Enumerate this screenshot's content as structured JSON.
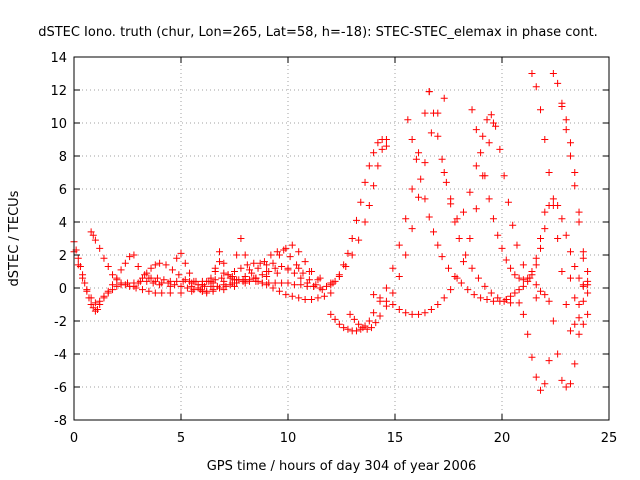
{
  "chart_data": {
    "type": "scatter",
    "title": "dSTEC Iono. truth (chur, Lon=265, Lat=58, h=-18): STEC-STEC_elemax in phase cont.",
    "xlabel": "GPS time / hours of day 304 of year 2006",
    "ylabel": "dSTEC  / TECUs",
    "xlim": [
      0,
      25
    ],
    "ylim": [
      -8,
      14
    ],
    "xticks": [
      0,
      5,
      10,
      15,
      20,
      25
    ],
    "yticks": [
      -8,
      -6,
      -4,
      -2,
      0,
      2,
      4,
      6,
      8,
      10,
      12,
      14
    ],
    "grid": true,
    "legend": "none",
    "marker": "+",
    "color": "#ff0000",
    "series": [
      {
        "x": [
          0.0,
          0.1,
          0.2,
          0.3,
          0.4,
          0.5,
          0.6,
          0.7,
          0.8,
          0.9,
          1.0,
          1.1,
          1.2,
          1.4,
          1.6,
          1.8,
          2.0,
          2.2,
          2.5,
          2.8,
          3.1,
          3.4,
          3.7,
          4.0,
          4.5,
          5.0,
          5.5,
          6.0,
          6.5,
          7.0,
          7.5,
          8.0,
          8.5,
          9.0,
          9.5,
          10.0,
          10.5,
          11.0,
          11.5,
          12.0
        ],
        "y": [
          2.8,
          2.3,
          1.8,
          1.3,
          0.8,
          0.3,
          -0.2,
          -0.6,
          -1.0,
          -1.2,
          -1.4,
          -1.3,
          -1.0,
          -0.6,
          -0.3,
          -0.1,
          0.1,
          0.2,
          0.3,
          0.3,
          0.4,
          0.4,
          0.3,
          0.2,
          0.1,
          0.1,
          0.1,
          0.2,
          0.3,
          0.4,
          0.5,
          0.5,
          0.6,
          0.7,
          0.9,
          1.1,
          1.2,
          1.0,
          0.6,
          0.3
        ]
      },
      {
        "x": [
          0.8,
          0.9,
          1.0,
          1.2,
          1.4,
          1.6,
          1.8,
          2.0,
          2.2,
          2.4,
          2.6,
          2.9,
          3.2,
          3.5,
          3.8,
          4.1,
          4.5,
          5.0,
          5.5,
          6.0,
          6.5,
          7.0,
          7.5,
          8.0,
          8.5,
          9.0,
          9.3,
          9.6,
          9.9,
          10.2,
          10.5,
          10.8,
          11.1,
          11.4
        ],
        "y": [
          3.4,
          3.2,
          2.9,
          2.4,
          1.8,
          1.3,
          0.8,
          0.5,
          0.3,
          0.2,
          0.1,
          0.0,
          -0.1,
          -0.2,
          -0.3,
          -0.3,
          -0.3,
          -0.3,
          -0.2,
          -0.2,
          -0.2,
          -0.1,
          0.1,
          0.3,
          0.6,
          1.0,
          1.5,
          2.0,
          2.4,
          2.6,
          2.2,
          1.6,
          1.0,
          0.5
        ]
      },
      {
        "x": [
          0.0,
          0.2,
          0.4,
          0.6,
          0.8,
          1.0,
          1.2,
          1.4,
          1.6,
          1.8,
          2.0,
          2.2,
          2.4,
          2.6,
          2.8,
          3.0,
          3.3,
          3.6,
          3.9,
          4.2,
          4.5,
          4.8,
          5.1,
          5.4,
          5.7,
          6.0,
          6.3,
          6.6,
          6.9,
          7.2,
          7.5,
          7.8,
          8.1,
          8.4,
          8.7,
          9.0
        ],
        "y": [
          2.2,
          1.4,
          0.6,
          -0.1,
          -0.6,
          -0.9,
          -0.8,
          -0.5,
          -0.2,
          0.2,
          0.6,
          1.1,
          1.5,
          1.9,
          2.0,
          1.3,
          0.8,
          0.6,
          0.6,
          0.5,
          0.4,
          0.4,
          0.4,
          0.4,
          0.4,
          0.4,
          0.4,
          0.5,
          0.6,
          0.8,
          1.0,
          1.2,
          1.4,
          1.5,
          1.5,
          1.4
        ]
      },
      {
        "x": [
          2.8,
          3.0,
          3.2,
          3.4,
          3.6,
          3.8,
          4.0,
          4.3,
          4.6,
          4.9,
          5.2,
          5.5,
          5.8,
          6.1,
          6.4,
          6.7,
          7.0,
          7.3,
          7.6,
          7.9,
          8.2,
          8.5,
          8.8,
          9.1,
          9.4,
          9.7,
          10.0,
          10.3,
          10.6,
          10.9,
          11.2
        ],
        "y": [
          0.1,
          0.3,
          0.6,
          0.9,
          1.2,
          1.4,
          1.5,
          1.4,
          1.1,
          0.8,
          0.5,
          0.3,
          0.2,
          0.1,
          0.1,
          0.1,
          0.2,
          0.2,
          0.3,
          0.4,
          0.5,
          0.6,
          0.8,
          1.0,
          1.2,
          1.3,
          1.2,
          0.9,
          0.6,
          0.3,
          0.1
        ]
      },
      {
        "x": [
          3.5,
          3.8,
          4.1,
          4.4,
          4.7,
          5.0,
          5.3,
          5.6,
          5.9,
          6.2,
          6.5,
          6.8,
          7.1,
          7.4,
          7.7,
          8.0,
          8.3,
          8.6,
          8.9,
          9.2,
          9.5,
          9.8,
          10.1,
          10.4,
          10.7,
          11.0,
          11.3,
          11.6
        ],
        "y": [
          0.6,
          0.4,
          0.3,
          0.3,
          0.2,
          0.1,
          0.0,
          -0.1,
          -0.1,
          -0.2,
          -0.1,
          0.0,
          0.1,
          0.3,
          0.5,
          0.7,
          0.9,
          1.2,
          1.6,
          2.0,
          2.2,
          2.3,
          1.9,
          1.4,
          0.9,
          0.5,
          0.2,
          -0.1
        ]
      },
      {
        "x": [
          4.8,
          5.0,
          5.2,
          5.4,
          5.6,
          5.8,
          6.0,
          6.2,
          6.4,
          6.6,
          6.8,
          7.0,
          7.2,
          7.4,
          7.6,
          7.8,
          8.0,
          8.2,
          8.4,
          8.6,
          8.8,
          9.0,
          9.3,
          9.6,
          9.9,
          10.2,
          10.5,
          10.8,
          11.1,
          11.4,
          11.7,
          12.0
        ],
        "y": [
          1.8,
          2.1,
          1.5,
          0.9,
          0.4,
          0.0,
          -0.2,
          -0.3,
          0.4,
          1.2,
          2.2,
          1.5,
          0.8,
          0.7,
          2.0,
          3.0,
          2.0,
          1.1,
          0.6,
          0.4,
          0.3,
          0.2,
          0.0,
          -0.2,
          -0.4,
          -0.5,
          -0.6,
          -0.7,
          -0.7,
          -0.6,
          -0.5,
          -0.3
        ]
      },
      {
        "x": [
          6.0,
          6.2,
          6.4,
          6.6,
          6.8,
          7.0,
          7.3,
          7.6,
          7.9,
          8.2,
          8.5,
          8.8,
          9.1,
          9.4,
          9.7,
          10.0,
          10.3,
          10.6,
          10.9,
          11.2,
          11.5,
          11.8,
          12.1,
          12.4,
          12.7,
          13.0,
          13.3,
          13.6,
          13.8,
          14.0,
          14.2,
          14.4,
          14.6
        ],
        "y": [
          0.2,
          0.4,
          0.6,
          1.0,
          1.6,
          0.9,
          0.6,
          0.5,
          0.5,
          0.4,
          0.4,
          0.3,
          0.3,
          0.3,
          0.3,
          0.3,
          0.2,
          0.2,
          0.1,
          0.1,
          0.0,
          0.1,
          0.3,
          0.7,
          1.3,
          2.0,
          2.9,
          4.0,
          5.0,
          6.2,
          7.4,
          8.4,
          9.0
        ]
      },
      {
        "x": [
          12.0,
          12.2,
          12.4,
          12.6,
          12.8,
          13.0,
          13.2,
          13.4,
          13.6,
          13.8,
          14.0,
          14.2,
          14.4,
          14.6
        ],
        "y": [
          0.2,
          0.4,
          0.8,
          1.4,
          2.1,
          3.0,
          4.1,
          5.2,
          6.4,
          7.4,
          8.2,
          8.8,
          9.0,
          8.6
        ]
      },
      {
        "x": [
          12.0,
          12.2,
          12.4,
          12.6,
          12.8,
          13.0,
          13.2,
          13.4,
          13.6,
          13.8,
          14.0,
          14.3,
          14.6,
          14.9,
          15.2,
          15.5,
          15.8,
          16.1,
          16.4,
          16.6
        ],
        "y": [
          -1.6,
          -1.9,
          -2.2,
          -2.4,
          -2.5,
          -2.6,
          -2.6,
          -2.5,
          -2.3,
          -2.0,
          -1.5,
          -0.8,
          0.0,
          1.2,
          2.6,
          4.2,
          6.0,
          8.2,
          10.6,
          11.9
        ]
      },
      {
        "x": [
          12.9,
          13.1,
          13.3,
          13.5,
          13.7,
          13.9,
          14.1,
          14.3,
          14.6,
          14.9,
          15.2,
          15.5,
          15.8,
          16.1,
          16.4,
          16.7,
          17.0,
          17.3
        ],
        "y": [
          -1.6,
          -1.9,
          -2.2,
          -2.4,
          -2.5,
          -2.4,
          -2.1,
          -1.7,
          -1.1,
          -0.3,
          0.7,
          2.0,
          3.6,
          5.5,
          7.6,
          9.4,
          10.6,
          11.5
        ]
      },
      {
        "x": [
          14.0,
          14.3,
          14.6,
          14.9,
          15.2,
          15.5,
          15.8,
          16.1,
          16.4,
          16.7,
          17.0,
          17.3,
          17.6,
          17.9,
          18.2,
          18.5,
          18.8,
          19.1,
          19.4,
          19.6
        ],
        "y": [
          -0.4,
          -0.6,
          -0.8,
          -1.0,
          -1.3,
          -1.5,
          -1.6,
          -1.6,
          -1.5,
          -1.3,
          -1.0,
          -0.6,
          -0.1,
          0.6,
          1.6,
          3.0,
          4.8,
          6.8,
          8.8,
          10.0
        ]
      },
      {
        "x": [
          15.6,
          15.8,
          16.0,
          16.2,
          16.4,
          16.6,
          16.8,
          17.0,
          17.2,
          17.5,
          17.8,
          18.1,
          18.4,
          18.7,
          19.0,
          19.3,
          19.6,
          19.9,
          20.2
        ],
        "y": [
          10.2,
          9.0,
          7.8,
          6.6,
          5.4,
          4.3,
          3.4,
          2.6,
          1.9,
          1.2,
          0.7,
          0.3,
          -0.1,
          -0.4,
          -0.6,
          -0.7,
          -0.8,
          -0.8,
          -0.7
        ]
      },
      {
        "x": [
          16.6,
          16.8,
          17.0,
          17.2,
          17.4,
          17.6,
          17.8,
          18.0,
          18.3,
          18.6,
          18.9,
          19.2,
          19.5,
          19.8,
          20.1,
          20.4
        ],
        "y": [
          11.9,
          10.6,
          9.2,
          7.8,
          6.4,
          5.1,
          4.0,
          3.0,
          2.0,
          1.2,
          0.6,
          0.1,
          -0.3,
          -0.6,
          -0.8,
          -0.9
        ]
      },
      {
        "x": [
          17.3,
          17.6,
          17.9,
          18.2,
          18.5,
          18.8,
          19.1,
          19.3,
          19.5,
          19.7,
          19.9,
          20.1,
          20.3,
          20.5,
          20.7,
          21.0,
          21.3,
          21.6
        ],
        "y": [
          7.0,
          5.4,
          4.2,
          4.6,
          5.8,
          7.4,
          9.2,
          10.2,
          10.5,
          9.8,
          8.4,
          6.8,
          5.2,
          3.8,
          2.6,
          1.4,
          0.6,
          0.2
        ]
      },
      {
        "x": [
          18.6,
          18.8,
          19.0,
          19.2,
          19.4,
          19.6,
          19.8,
          20.0,
          20.2,
          20.4,
          20.6,
          20.8,
          21.0,
          21.2,
          21.4,
          21.6,
          21.8,
          22.0
        ],
        "y": [
          10.8,
          9.6,
          8.2,
          6.8,
          5.4,
          4.2,
          3.2,
          2.4,
          1.7,
          1.2,
          0.8,
          0.6,
          0.5,
          0.6,
          1.0,
          1.8,
          3.0,
          4.6
        ]
      },
      {
        "x": [
          20.2,
          20.4,
          20.6,
          20.8,
          21.0,
          21.2,
          21.4,
          21.6,
          21.8,
          22.0,
          22.2,
          22.4,
          22.6,
          22.8,
          23.0,
          23.2,
          23.4,
          23.6,
          23.8,
          24.0
        ],
        "y": [
          -0.7,
          -0.5,
          -0.3,
          -0.1,
          0.1,
          0.4,
          0.8,
          1.4,
          2.4,
          3.6,
          5.0,
          5.4,
          5.0,
          4.2,
          3.2,
          2.2,
          1.3,
          0.6,
          0.1,
          -0.3
        ]
      },
      {
        "x": [
          20.8,
          21.0,
          21.2,
          21.4,
          21.6,
          21.8,
          22.0,
          22.2
        ],
        "y": [
          -0.9,
          -1.6,
          -2.8,
          -4.2,
          -5.4,
          -6.2,
          -5.8,
          -4.4
        ]
      },
      {
        "x": [
          21.4,
          21.6,
          21.8,
          22.0,
          22.2,
          22.4,
          22.6,
          22.8,
          23.0,
          23.2,
          23.4,
          23.6,
          23.8
        ],
        "y": [
          13.0,
          12.2,
          10.8,
          9.0,
          7.0,
          5.0,
          3.0,
          1.0,
          -1.0,
          -2.6,
          -2.2,
          -1.0,
          0.2
        ]
      },
      {
        "x": [
          22.4,
          22.6,
          22.8,
          23.0,
          23.2,
          23.4,
          23.6,
          23.8,
          24.0
        ],
        "y": [
          13.0,
          12.4,
          11.2,
          9.6,
          8.0,
          6.2,
          4.0,
          1.8,
          0.2
        ]
      },
      {
        "x": [
          21.6,
          21.8,
          22.0,
          22.2,
          22.4,
          22.6,
          22.8,
          23.0,
          23.2,
          23.4,
          23.6,
          23.8,
          24.0
        ],
        "y": [
          -0.6,
          -0.2,
          -0.4,
          -0.8,
          -2.0,
          -4.0,
          -5.6,
          -6.0,
          -5.8,
          -4.6,
          -2.8,
          -0.8,
          1.0
        ]
      },
      {
        "x": [
          22.8,
          23.0,
          23.2,
          23.4,
          23.6,
          23.8,
          24.0
        ],
        "y": [
          11.0,
          10.2,
          8.8,
          7.0,
          4.6,
          2.2,
          0.4
        ]
      },
      {
        "x": [
          23.2,
          23.4,
          23.6,
          23.8,
          24.0
        ],
        "y": [
          0.6,
          -0.6,
          -1.8,
          -2.2,
          -1.6
        ]
      }
    ]
  }
}
